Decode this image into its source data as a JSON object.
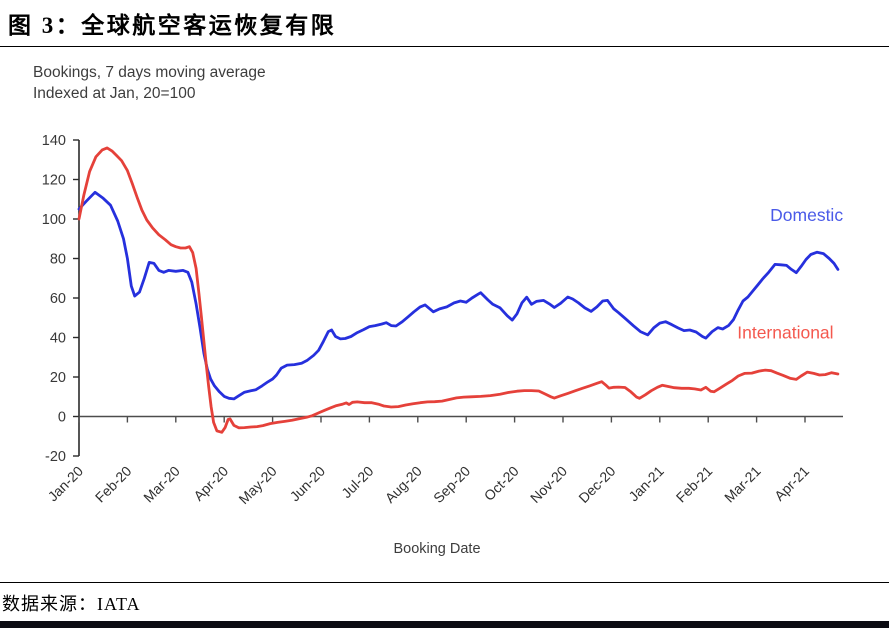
{
  "figure": {
    "title": "图 3：全球航空客运恢复有限",
    "source": "数据来源：IATA"
  },
  "chart_data": {
    "type": "line",
    "title_lines": [
      "Bookings, 7 days moving average",
      "Indexed at Jan, 20=100"
    ],
    "xlabel": "Booking Date",
    "x_ticklabels": [
      "Jan-20",
      "Feb-20",
      "Mar-20",
      "Apr-20",
      "May-20",
      "Jun-20",
      "Jul-20",
      "Aug-20",
      "Sep-20",
      "Oct-20",
      "Nov-20",
      "Dec-20",
      "Jan-21",
      "Feb-21",
      "Mar-21",
      "Apr-21"
    ],
    "y_ticks": [
      -20,
      0,
      20,
      40,
      60,
      80,
      100,
      120,
      140
    ],
    "ylim": [
      -20,
      140
    ],
    "grid": false,
    "legend_position": "on-chart",
    "annotations": [
      {
        "text": "Domestic",
        "x_month": 14.28,
        "value": 99,
        "color": "#4a5ae8"
      },
      {
        "text": "International",
        "x_month": 13.6,
        "value": 39.5,
        "color": "#f4584e"
      }
    ],
    "series": [
      {
        "name": "Domestic",
        "color": "#2630dd",
        "points": [
          [
            0,
            105
          ],
          [
            0.15,
            109
          ],
          [
            0.33,
            113.5
          ],
          [
            0.5,
            110.5
          ],
          [
            0.65,
            107
          ],
          [
            0.8,
            99
          ],
          [
            0.92,
            90
          ],
          [
            1.0,
            80
          ],
          [
            1.08,
            66
          ],
          [
            1.15,
            61
          ],
          [
            1.25,
            63
          ],
          [
            1.35,
            70
          ],
          [
            1.45,
            78
          ],
          [
            1.55,
            77.5
          ],
          [
            1.65,
            74
          ],
          [
            1.75,
            73
          ],
          [
            1.85,
            74
          ],
          [
            2.0,
            73.5
          ],
          [
            2.15,
            74
          ],
          [
            2.25,
            73
          ],
          [
            2.33,
            68
          ],
          [
            2.42,
            57
          ],
          [
            2.5,
            45
          ],
          [
            2.58,
            32
          ],
          [
            2.65,
            24
          ],
          [
            2.72,
            19
          ],
          [
            2.8,
            15.5
          ],
          [
            2.9,
            12.5
          ],
          [
            3.0,
            10.2
          ],
          [
            3.1,
            9.2
          ],
          [
            3.2,
            8.9
          ],
          [
            3.3,
            10.5
          ],
          [
            3.42,
            12.3
          ],
          [
            3.55,
            13
          ],
          [
            3.65,
            13.5
          ],
          [
            3.78,
            15.5
          ],
          [
            3.9,
            17.5
          ],
          [
            4.0,
            19
          ],
          [
            4.08,
            21
          ],
          [
            4.18,
            24.5
          ],
          [
            4.3,
            26
          ],
          [
            4.45,
            26.3
          ],
          [
            4.6,
            27
          ],
          [
            4.72,
            28.5
          ],
          [
            4.85,
            31
          ],
          [
            4.95,
            33.5
          ],
          [
            5.05,
            38
          ],
          [
            5.15,
            43
          ],
          [
            5.22,
            43.8
          ],
          [
            5.3,
            40.5
          ],
          [
            5.4,
            39.3
          ],
          [
            5.5,
            39.5
          ],
          [
            5.62,
            40.5
          ],
          [
            5.75,
            42.5
          ],
          [
            5.88,
            44
          ],
          [
            6.0,
            45.5
          ],
          [
            6.12,
            46
          ],
          [
            6.25,
            46.8
          ],
          [
            6.35,
            47.5
          ],
          [
            6.45,
            46
          ],
          [
            6.55,
            45.8
          ],
          [
            6.68,
            48
          ],
          [
            6.8,
            50.5
          ],
          [
            6.92,
            53
          ],
          [
            7.05,
            55.5
          ],
          [
            7.15,
            56.5
          ],
          [
            7.25,
            54.5
          ],
          [
            7.32,
            53
          ],
          [
            7.45,
            54.5
          ],
          [
            7.6,
            55.5
          ],
          [
            7.75,
            57.5
          ],
          [
            7.88,
            58.5
          ],
          [
            8.0,
            57.8
          ],
          [
            8.12,
            60
          ],
          [
            8.25,
            62
          ],
          [
            8.3,
            62.7
          ],
          [
            8.45,
            59
          ],
          [
            8.55,
            56.8
          ],
          [
            8.7,
            55
          ],
          [
            8.85,
            51
          ],
          [
            8.95,
            48.8
          ],
          [
            9.05,
            52
          ],
          [
            9.15,
            57.5
          ],
          [
            9.25,
            60.4
          ],
          [
            9.35,
            56.8
          ],
          [
            9.45,
            58.3
          ],
          [
            9.6,
            58.8
          ],
          [
            9.72,
            57
          ],
          [
            9.82,
            55.2
          ],
          [
            9.95,
            57.3
          ],
          [
            10.1,
            60.5
          ],
          [
            10.2,
            59.5
          ],
          [
            10.32,
            57.5
          ],
          [
            10.45,
            55
          ],
          [
            10.58,
            53.2
          ],
          [
            10.7,
            55.5
          ],
          [
            10.82,
            58.5
          ],
          [
            10.92,
            58.8
          ],
          [
            11.05,
            54.5
          ],
          [
            11.15,
            52.5
          ],
          [
            11.3,
            49.3
          ],
          [
            11.45,
            46
          ],
          [
            11.6,
            43
          ],
          [
            11.75,
            41.3
          ],
          [
            11.88,
            45
          ],
          [
            12.0,
            47.3
          ],
          [
            12.12,
            48
          ],
          [
            12.25,
            46.5
          ],
          [
            12.38,
            44.8
          ],
          [
            12.5,
            43.5
          ],
          [
            12.62,
            43.8
          ],
          [
            12.75,
            42.8
          ],
          [
            12.88,
            40.5
          ],
          [
            12.95,
            39.7
          ],
          [
            13.08,
            43
          ],
          [
            13.2,
            45
          ],
          [
            13.3,
            44.3
          ],
          [
            13.42,
            46
          ],
          [
            13.52,
            49
          ],
          [
            13.62,
            54
          ],
          [
            13.72,
            58.5
          ],
          [
            13.82,
            60.5
          ],
          [
            13.92,
            63.5
          ],
          [
            14.02,
            66.5
          ],
          [
            14.12,
            69.5
          ],
          [
            14.25,
            73
          ],
          [
            14.38,
            77
          ],
          [
            14.5,
            76.8
          ],
          [
            14.62,
            76.5
          ],
          [
            14.72,
            74.5
          ],
          [
            14.82,
            72.8
          ],
          [
            14.92,
            76
          ],
          [
            15.02,
            79.5
          ],
          [
            15.12,
            82
          ],
          [
            15.25,
            83.2
          ],
          [
            15.38,
            82.5
          ],
          [
            15.5,
            80
          ],
          [
            15.6,
            77.5
          ],
          [
            15.68,
            74.5
          ]
        ]
      },
      {
        "name": "International",
        "color": "#e5413a",
        "points": [
          [
            0,
            100
          ],
          [
            0.1,
            112
          ],
          [
            0.22,
            124
          ],
          [
            0.35,
            131.5
          ],
          [
            0.48,
            135
          ],
          [
            0.58,
            136
          ],
          [
            0.68,
            134.5
          ],
          [
            0.78,
            132
          ],
          [
            0.88,
            129.5
          ],
          [
            1.0,
            124.5
          ],
          [
            1.1,
            118
          ],
          [
            1.2,
            111
          ],
          [
            1.3,
            104.5
          ],
          [
            1.4,
            99.5
          ],
          [
            1.52,
            95.5
          ],
          [
            1.65,
            92
          ],
          [
            1.78,
            89.5
          ],
          [
            1.9,
            87
          ],
          [
            2.0,
            86
          ],
          [
            2.1,
            85.3
          ],
          [
            2.2,
            85.3
          ],
          [
            2.28,
            86
          ],
          [
            2.35,
            83
          ],
          [
            2.42,
            75
          ],
          [
            2.48,
            62
          ],
          [
            2.53,
            50
          ],
          [
            2.58,
            38
          ],
          [
            2.63,
            26
          ],
          [
            2.68,
            15
          ],
          [
            2.73,
            5
          ],
          [
            2.78,
            -3
          ],
          [
            2.85,
            -7.3
          ],
          [
            2.95,
            -8
          ],
          [
            3.02,
            -5.5
          ],
          [
            3.08,
            -1.5
          ],
          [
            3.12,
            -1.2
          ],
          [
            3.2,
            -4.5
          ],
          [
            3.3,
            -5.7
          ],
          [
            3.42,
            -5.6
          ],
          [
            3.55,
            -5.3
          ],
          [
            3.68,
            -5.1
          ],
          [
            3.8,
            -4.6
          ],
          [
            3.95,
            -3.6
          ],
          [
            4.1,
            -3
          ],
          [
            4.25,
            -2.5
          ],
          [
            4.4,
            -1.9
          ],
          [
            4.55,
            -1.1
          ],
          [
            4.7,
            -0.4
          ],
          [
            4.82,
            0.4
          ],
          [
            4.95,
            1.8
          ],
          [
            5.08,
            3.2
          ],
          [
            5.2,
            4.4
          ],
          [
            5.32,
            5.5
          ],
          [
            5.45,
            6.3
          ],
          [
            5.52,
            6.9
          ],
          [
            5.58,
            6.1
          ],
          [
            5.65,
            7.2
          ],
          [
            5.75,
            7.4
          ],
          [
            5.9,
            7
          ],
          [
            6.05,
            7
          ],
          [
            6.18,
            6.3
          ],
          [
            6.3,
            5.3
          ],
          [
            6.45,
            4.8
          ],
          [
            6.6,
            5
          ],
          [
            6.75,
            5.8
          ],
          [
            6.9,
            6.5
          ],
          [
            7.05,
            7
          ],
          [
            7.2,
            7.4
          ],
          [
            7.35,
            7.5
          ],
          [
            7.5,
            7.8
          ],
          [
            7.65,
            8.6
          ],
          [
            7.8,
            9.4
          ],
          [
            7.95,
            9.8
          ],
          [
            8.1,
            10
          ],
          [
            8.3,
            10.2
          ],
          [
            8.5,
            10.6
          ],
          [
            8.7,
            11.3
          ],
          [
            8.9,
            12.3
          ],
          [
            9.05,
            12.8
          ],
          [
            9.2,
            13.1
          ],
          [
            9.35,
            13.1
          ],
          [
            9.5,
            12.9
          ],
          [
            9.62,
            11.5
          ],
          [
            9.75,
            10
          ],
          [
            9.82,
            9.3
          ],
          [
            9.95,
            10.5
          ],
          [
            10.1,
            11.7
          ],
          [
            10.25,
            13
          ],
          [
            10.4,
            14.3
          ],
          [
            10.55,
            15.5
          ],
          [
            10.7,
            16.8
          ],
          [
            10.8,
            17.6
          ],
          [
            10.88,
            16
          ],
          [
            10.95,
            14.4
          ],
          [
            11.05,
            14.8
          ],
          [
            11.15,
            14.9
          ],
          [
            11.28,
            14.7
          ],
          [
            11.4,
            12.5
          ],
          [
            11.52,
            9.8
          ],
          [
            11.58,
            9.2
          ],
          [
            11.7,
            11
          ],
          [
            11.82,
            13
          ],
          [
            11.95,
            14.8
          ],
          [
            12.05,
            15.8
          ],
          [
            12.15,
            15.3
          ],
          [
            12.3,
            14.6
          ],
          [
            12.45,
            14.3
          ],
          [
            12.6,
            14.3
          ],
          [
            12.72,
            14
          ],
          [
            12.85,
            13.4
          ],
          [
            12.95,
            14.8
          ],
          [
            13.05,
            12.8
          ],
          [
            13.12,
            12.5
          ],
          [
            13.25,
            14.5
          ],
          [
            13.38,
            16.5
          ],
          [
            13.5,
            18.3
          ],
          [
            13.62,
            20.5
          ],
          [
            13.75,
            21.8
          ],
          [
            13.9,
            22
          ],
          [
            14.05,
            23
          ],
          [
            14.18,
            23.5
          ],
          [
            14.3,
            23.2
          ],
          [
            14.42,
            22
          ],
          [
            14.55,
            20.8
          ],
          [
            14.7,
            19.3
          ],
          [
            14.82,
            18.8
          ],
          [
            14.92,
            20.5
          ],
          [
            15.05,
            22.5
          ],
          [
            15.18,
            21.8
          ],
          [
            15.3,
            21
          ],
          [
            15.42,
            21.2
          ],
          [
            15.55,
            22.2
          ],
          [
            15.68,
            21.5
          ]
        ]
      }
    ]
  }
}
